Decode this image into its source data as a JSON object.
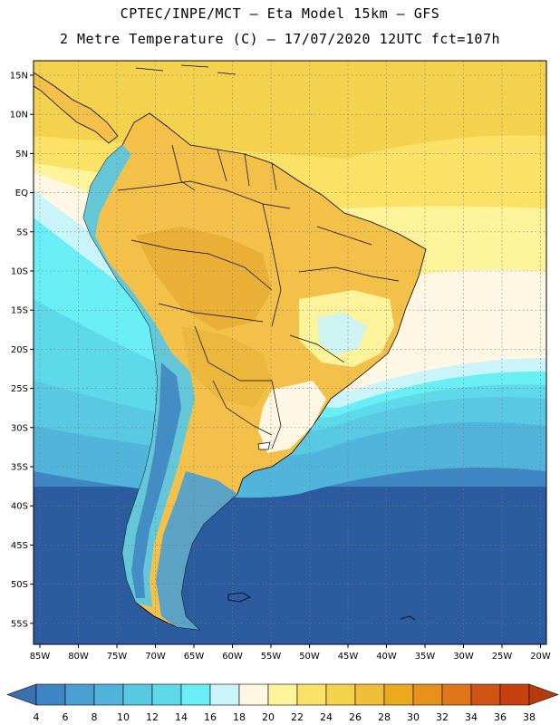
{
  "header": {
    "line1": "CPTEC/INPE/MCT –  Eta Model 15km – GFS",
    "line2": "2 Metre Temperature (C) – 17/07/2020 12UTC fct=107h"
  },
  "map": {
    "lat_labels": [
      "15N",
      "10N",
      "5N",
      "EQ",
      "5S",
      "10S",
      "15S",
      "20S",
      "25S",
      "30S",
      "35S",
      "40S",
      "45S",
      "50S",
      "55S"
    ],
    "lon_labels": [
      "85W",
      "80W",
      "75W",
      "70W",
      "65W",
      "60W",
      "55W",
      "50W",
      "45W",
      "40W",
      "35W",
      "30W",
      "25W",
      "20W"
    ],
    "gridline_style": "dotted",
    "land_outline_color": "#000000"
  },
  "colorbar": {
    "values": [
      "4",
      "6",
      "8",
      "10",
      "12",
      "14",
      "16",
      "18",
      "20",
      "22",
      "24",
      "26",
      "28",
      "30",
      "32",
      "34",
      "36",
      "38"
    ],
    "colors": [
      "#3a6fb0",
      "#3f86c4",
      "#4b9fd1",
      "#51b5db",
      "#58c8e3",
      "#5ed9ea",
      "#6aeef5",
      "#c8f4fa",
      "#fdf7e3",
      "#fdf39a",
      "#f9e266",
      "#f5d24e",
      "#efbf3a",
      "#eaa91f",
      "#e7911c",
      "#df7618",
      "#cf5514",
      "#c6410f",
      "#b53a0c"
    ]
  }
}
